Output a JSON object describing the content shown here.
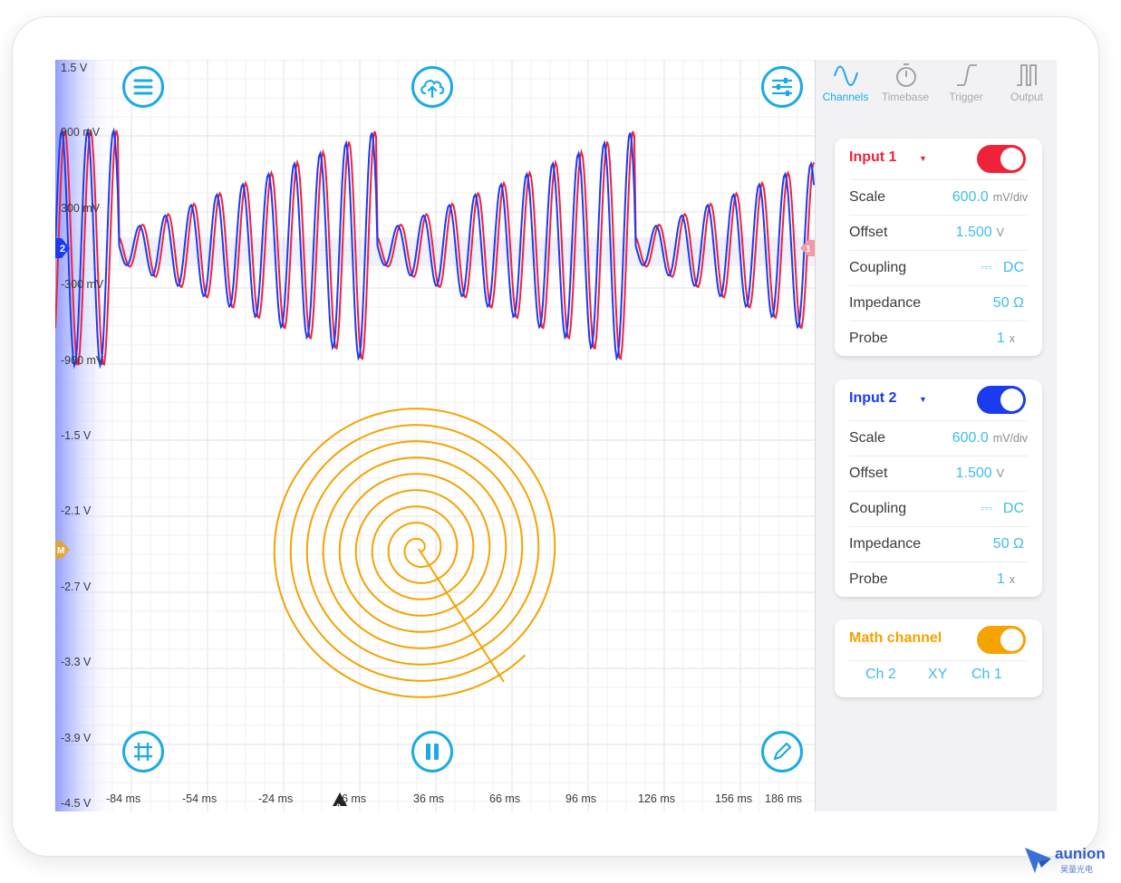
{
  "scope": {
    "y_axis_labels": [
      "1.5 V",
      "900 mV",
      "300 mV",
      "-300 mV",
      "-900 mV",
      "-1.5 V",
      "-2.1 V",
      "-2.7 V",
      "-3.3 V",
      "-3.9 V",
      "-4.5 V"
    ],
    "x_axis_labels": [
      "-84 ms",
      "-54 ms",
      "-24 ms",
      "6 ms",
      "36 ms",
      "66 ms",
      "96 ms",
      "126 ms",
      "156 ms",
      "186 ms"
    ],
    "markers": {
      "channel2": "2",
      "math": "M",
      "trigger": "0",
      "channel1": "1"
    },
    "colors": {
      "channel1": "#f0223a",
      "channel2": "#1a3bf0",
      "math": "#f4a300",
      "accent": "#1aaae6"
    },
    "traces": {
      "channel1": {
        "shape": "sine-bursts",
        "amplitude_v": 0.9
      },
      "channel2": {
        "shape": "sine-bursts",
        "amplitude_v": 0.9
      },
      "math_xy": {
        "shape": "spiral",
        "turns": 9
      }
    },
    "buttons": {
      "menu": "menu-icon",
      "cloud": "cloud-upload-icon",
      "settings": "sliders-icon",
      "grid": "grid-icon",
      "pause": "pause-icon",
      "pen": "pencil-icon"
    }
  },
  "tabs": [
    {
      "label": "Channels",
      "icon": "sine-wave-icon",
      "active": true
    },
    {
      "label": "Timebase",
      "icon": "stopwatch-icon",
      "active": false
    },
    {
      "label": "Trigger",
      "icon": "trigger-edge-icon",
      "active": false
    },
    {
      "label": "Output",
      "icon": "pulse-wave-icon",
      "active": false
    }
  ],
  "input1": {
    "title": "Input 1",
    "caret": "▼",
    "enabled": true,
    "rows": {
      "scale": {
        "label": "Scale",
        "value": "600.0",
        "unit": "mV/div"
      },
      "offset": {
        "label": "Offset",
        "value": "1.500",
        "unit": "V"
      },
      "coupling": {
        "label": "Coupling",
        "symbol": "⎓",
        "value": "DC"
      },
      "impedance": {
        "label": "Impedance",
        "value": "50 Ω"
      },
      "probe": {
        "label": "Probe",
        "value": "1",
        "unit": "x"
      }
    }
  },
  "input2": {
    "title": "Input 2",
    "caret": "▼",
    "enabled": true,
    "rows": {
      "scale": {
        "label": "Scale",
        "value": "600.0",
        "unit": "mV/div"
      },
      "offset": {
        "label": "Offset",
        "value": "1.500",
        "unit": "V"
      },
      "coupling": {
        "label": "Coupling",
        "symbol": "⎓",
        "value": "DC"
      },
      "impedance": {
        "label": "Impedance",
        "value": "50 Ω"
      },
      "probe": {
        "label": "Probe",
        "value": "1",
        "unit": "x"
      }
    }
  },
  "math": {
    "title": "Math channel",
    "enabled": true,
    "operand_a": "Ch 2",
    "mode": "XY",
    "operand_b": "Ch 1"
  },
  "watermark": {
    "brand": "aunion",
    "subtitle": "昊量光电"
  }
}
